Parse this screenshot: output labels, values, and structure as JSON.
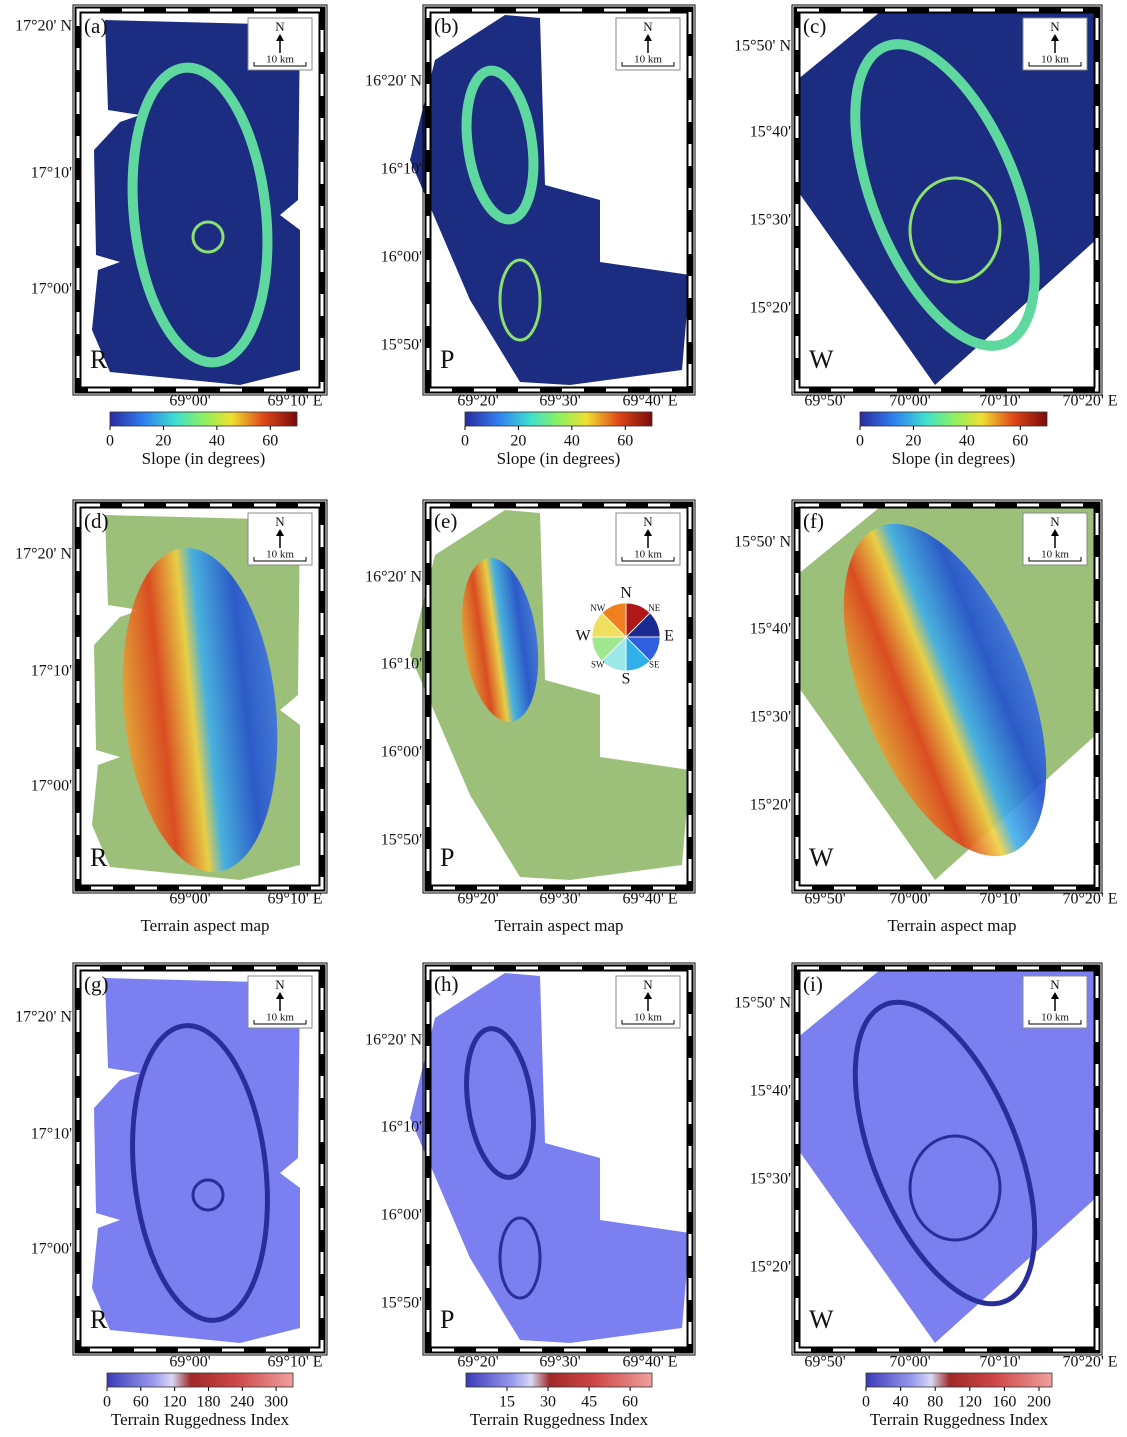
{
  "panels": [
    {
      "letter": "(a)",
      "site": "R",
      "north": "N",
      "scale": "10 km",
      "lat_labels": [
        "17°20' N",
        "17°10'",
        "17°00'"
      ],
      "lon_labels": [
        "69°00'",
        "69°10' E"
      ],
      "colorbar": {
        "ticks": [
          0,
          20,
          40,
          60
        ],
        "range": [
          0,
          70
        ],
        "label": "Slope (in degrees)"
      }
    },
    {
      "letter": "(b)",
      "site": "P",
      "north": "N",
      "scale": "10 km",
      "lat_labels": [
        "16°20' N",
        "16°10'",
        "16°00'",
        "15°50'"
      ],
      "lon_labels": [
        "69°20'",
        "69°30'",
        "69°40' E"
      ],
      "colorbar": {
        "ticks": [
          0,
          20,
          40,
          60
        ],
        "range": [
          0,
          70
        ],
        "label": "Slope (in degrees)"
      }
    },
    {
      "letter": "(c)",
      "site": "W",
      "north": "N",
      "scale": "10 km",
      "lat_labels": [
        "15°50' N",
        "15°40'",
        "15°30'",
        "15°20'"
      ],
      "lon_labels": [
        "69°50'",
        "70°00'",
        "70°10'",
        "70°20' E"
      ],
      "colorbar": {
        "ticks": [
          0,
          20,
          40,
          60
        ],
        "range": [
          0,
          70
        ],
        "label": "Slope (in degrees)"
      }
    },
    {
      "letter": "(d)",
      "site": "R",
      "north": "N",
      "scale": "10 km",
      "lat_labels": [
        "17°20' N",
        "17°10'",
        "17°00'"
      ],
      "lon_labels": [
        "69°00'",
        "69°10' E"
      ],
      "caption": "Terrain aspect map"
    },
    {
      "letter": "(e)",
      "site": "P",
      "north": "N",
      "scale": "10 km",
      "lat_labels": [
        "16°20' N",
        "16°10'",
        "16°00'",
        "15°50'"
      ],
      "lon_labels": [
        "69°20'",
        "69°30'",
        "69°40' E"
      ],
      "caption": "Terrain aspect map",
      "compass": [
        "N",
        "NE",
        "E",
        "SE",
        "S",
        "SW",
        "W",
        "NW"
      ]
    },
    {
      "letter": "(f)",
      "site": "W",
      "north": "N",
      "scale": "10 km",
      "lat_labels": [
        "15°50' N",
        "15°40'",
        "15°30'",
        "15°20'"
      ],
      "lon_labels": [
        "69°50'",
        "70°00'",
        "70°10'",
        "70°20' E"
      ],
      "caption": "Terrain aspect map"
    },
    {
      "letter": "(g)",
      "site": "R",
      "north": "N",
      "scale": "10 km",
      "lat_labels": [
        "17°20' N",
        "17°10'",
        "17°00'"
      ],
      "lon_labels": [
        "69°00'",
        "69°10' E"
      ],
      "colorbar": {
        "ticks": [
          0,
          60,
          120,
          180,
          240,
          300
        ],
        "range": [
          0,
          330
        ],
        "label": "Terrain Ruggedness Index"
      }
    },
    {
      "letter": "(h)",
      "site": "P",
      "north": "N",
      "scale": "10 km",
      "lat_labels": [
        "16°20' N",
        "16°10'",
        "16°00'",
        "15°50'"
      ],
      "lon_labels": [
        "69°20'",
        "69°30'",
        "69°40' E"
      ],
      "colorbar": {
        "ticks": [
          15,
          30,
          45,
          60
        ],
        "range": [
          0,
          68
        ],
        "label": "Terrain Ruggedness Index"
      }
    },
    {
      "letter": "(i)",
      "site": "W",
      "north": "N",
      "scale": "10 km",
      "lat_labels": [
        "15°50' N",
        "15°40'",
        "15°30'",
        "15°20'"
      ],
      "lon_labels": [
        "69°50'",
        "70°00'",
        "70°10'",
        "70°20' E"
      ],
      "colorbar": {
        "ticks": [
          0,
          40,
          80,
          120,
          160,
          200
        ],
        "range": [
          0,
          215
        ],
        "label": "Terrain Ruggedness Index"
      }
    }
  ]
}
